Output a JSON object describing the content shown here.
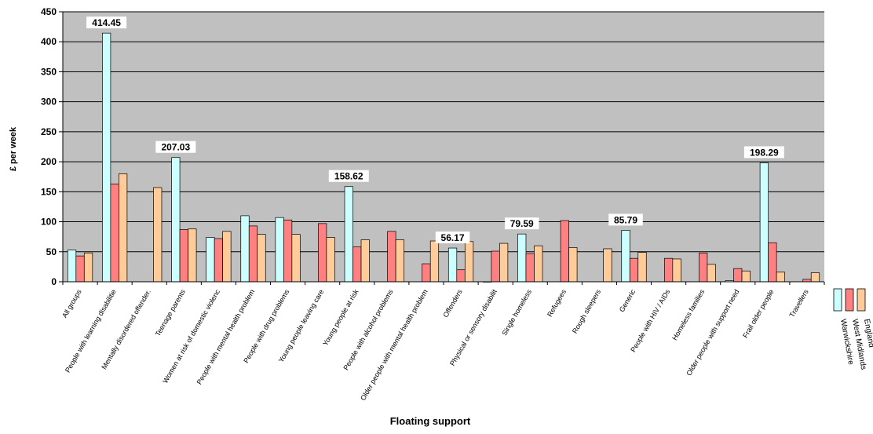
{
  "chart_data": {
    "type": "bar",
    "title": "",
    "xlabel": "Floating support",
    "ylabel": "£ per week",
    "ylim": [
      0,
      450
    ],
    "yticks": [
      0,
      50,
      100,
      150,
      200,
      250,
      300,
      350,
      400,
      450
    ],
    "grid": true,
    "plot_background": "#c0c0c0",
    "legend_position": "right",
    "categories": [
      "All groups",
      "People with learning disabilitie",
      "Mentally disordered offender.",
      "Teenage parents",
      "Women at risk of domestic violenc",
      "People with mental health problem",
      "People with drug problems",
      "Young people leaving care",
      "Young people at risk",
      "People with alcohol problems",
      "Older people with mental health problem",
      "Offenders",
      "Physical or sensory disabilit",
      "Single homeless",
      "Refugees",
      "Rough sleepers",
      "Generic",
      "People with HIV / AIDs",
      "Homeless families",
      "Older people with support need",
      "Frail older people",
      "Travellers"
    ],
    "series": [
      {
        "name": "Warwickshire",
        "color": "#ccffff",
        "values": [
          53,
          414.45,
          null,
          207.03,
          74,
          110,
          107,
          null,
          158.62,
          null,
          null,
          56.17,
          0,
          79.59,
          null,
          null,
          85.79,
          null,
          null,
          2,
          198.29,
          null
        ]
      },
      {
        "name": "West Midlands",
        "color": "#ff8080",
        "values": [
          43,
          163,
          null,
          87,
          72,
          93,
          103,
          97,
          58,
          84,
          30,
          20,
          51,
          47,
          102,
          null,
          39,
          39,
          48,
          22,
          65,
          4
        ]
      },
      {
        "name": "England",
        "color": "#ffcc99",
        "values": [
          48,
          180,
          157,
          88,
          84,
          79,
          79,
          74,
          70,
          70,
          68,
          67,
          64,
          60,
          57,
          55,
          49,
          38,
          29,
          18,
          16,
          15
        ]
      }
    ],
    "data_labels": [
      {
        "category_index": 1,
        "series_index": 0,
        "text": "414.45"
      },
      {
        "category_index": 3,
        "series_index": 0,
        "text": "207.03"
      },
      {
        "category_index": 8,
        "series_index": 0,
        "text": "158.62"
      },
      {
        "category_index": 11,
        "series_index": 0,
        "text": "56.17"
      },
      {
        "category_index": 13,
        "series_index": 0,
        "text": "79.59"
      },
      {
        "category_index": 16,
        "series_index": 0,
        "text": "85.79"
      },
      {
        "category_index": 20,
        "series_index": 0,
        "text": "198.29"
      }
    ]
  }
}
